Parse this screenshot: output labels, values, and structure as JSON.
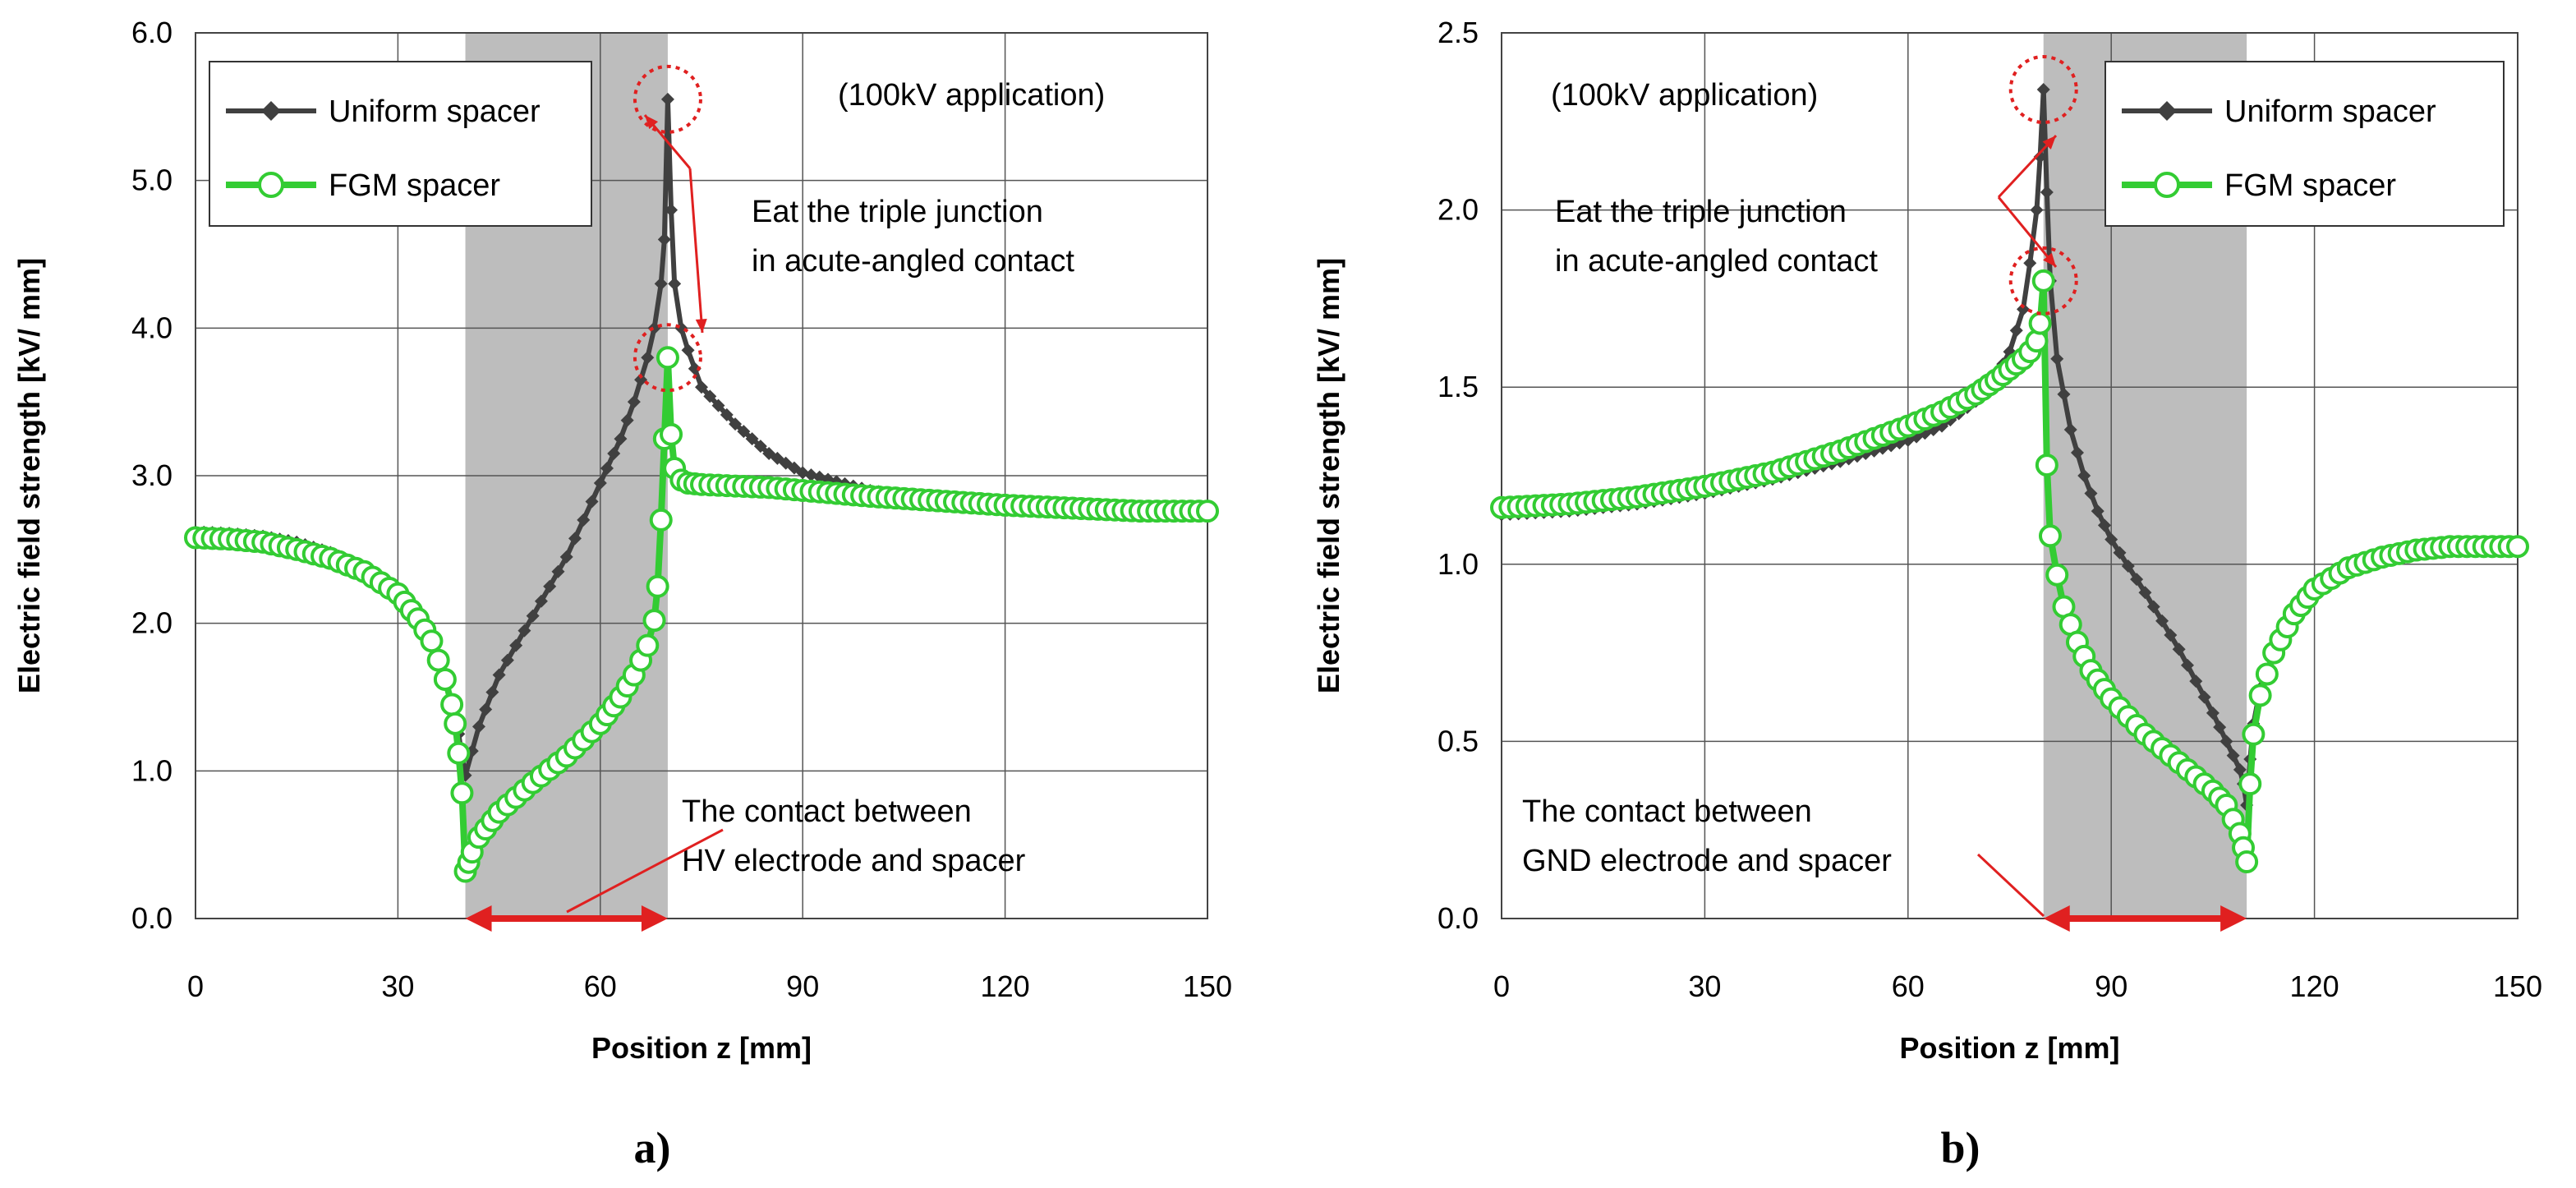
{
  "chart_data": [
    {
      "panel_label": "a)",
      "type": "line",
      "xlabel": "Position z [mm]",
      "ylabel": "Electric field strength [kV/ mm]",
      "xlim": [
        0,
        150
      ],
      "ylim": [
        0,
        6
      ],
      "xticks": [
        "0",
        "30",
        "60",
        "90",
        "120",
        "150"
      ],
      "yticks": [
        "0.0",
        "1.0",
        "2.0",
        "3.0",
        "4.0",
        "5.0",
        "6.0"
      ],
      "grid": true,
      "legend_position": "top-left",
      "shaded_region": [
        40,
        70
      ],
      "contact_arrow": [
        40,
        70
      ],
      "annotation_application": "(100kV application)",
      "annotation_eat_line1": "Eat the triple junction",
      "annotation_eat_line2": "in acute-angled contact",
      "annotation_contact_line1": "The contact between",
      "annotation_contact_line2": "HV electrode and spacer",
      "peak_circles": [
        [
          70,
          5.55
        ],
        [
          70,
          3.8
        ]
      ],
      "series": [
        {
          "name": "Uniform spacer",
          "color": "#404040",
          "marker": "diamond",
          "x": [
            0,
            5,
            10,
            15,
            20,
            25,
            30,
            33,
            35,
            37,
            38,
            39,
            39.5,
            40,
            42,
            45,
            50,
            55,
            60,
            63,
            65,
            67,
            68,
            69,
            69.5,
            70,
            70.5,
            71,
            72,
            73,
            75,
            80,
            85,
            90,
            100,
            110,
            120,
            130,
            140,
            150
          ],
          "y": [
            2.62,
            2.61,
            2.59,
            2.55,
            2.48,
            2.38,
            2.2,
            2.02,
            1.85,
            1.6,
            1.45,
            1.25,
            1.1,
            0.97,
            1.3,
            1.65,
            2.05,
            2.45,
            2.95,
            3.25,
            3.5,
            3.8,
            4.0,
            4.3,
            4.6,
            5.55,
            4.8,
            4.3,
            4.0,
            3.85,
            3.6,
            3.35,
            3.15,
            3.02,
            2.9,
            2.84,
            2.8,
            2.78,
            2.76,
            2.75
          ]
        },
        {
          "name": "FGM spacer",
          "color": "#33cc33",
          "marker": "circle",
          "x": [
            0,
            5,
            10,
            15,
            20,
            25,
            30,
            33,
            35,
            36,
            37,
            38,
            38.5,
            39,
            39.5,
            40,
            40.5,
            41,
            42,
            45,
            50,
            55,
            60,
            63,
            65,
            67,
            68,
            68.5,
            69,
            69.5,
            70,
            70.5,
            71,
            72,
            73,
            75,
            80,
            85,
            90,
            100,
            110,
            120,
            130,
            140,
            150
          ],
          "y": [
            2.58,
            2.57,
            2.55,
            2.5,
            2.44,
            2.35,
            2.2,
            2.03,
            1.88,
            1.75,
            1.62,
            1.45,
            1.32,
            1.12,
            0.85,
            0.32,
            0.38,
            0.45,
            0.55,
            0.72,
            0.92,
            1.1,
            1.32,
            1.5,
            1.65,
            1.85,
            2.02,
            2.25,
            2.7,
            3.25,
            3.8,
            3.28,
            3.05,
            2.97,
            2.95,
            2.94,
            2.93,
            2.92,
            2.9,
            2.86,
            2.83,
            2.8,
            2.78,
            2.76,
            2.76
          ]
        }
      ]
    },
    {
      "panel_label": "b)",
      "type": "line",
      "xlabel": "Position z [mm]",
      "ylabel": "Electric field strength [kV/ mm]",
      "xlim": [
        0,
        150
      ],
      "ylim": [
        0,
        2.5
      ],
      "xticks": [
        "0",
        "30",
        "60",
        "90",
        "120",
        "150"
      ],
      "yticks": [
        "0.0",
        "0.5",
        "1.0",
        "1.5",
        "2.0",
        "2.5"
      ],
      "grid": true,
      "legend_position": "top-right",
      "shaded_region": [
        80,
        110
      ],
      "contact_arrow": [
        80,
        110
      ],
      "annotation_application": "(100kV application)",
      "annotation_eat_line1": "Eat the triple junction",
      "annotation_eat_line2": "in acute-angled contact",
      "annotation_contact_line1": "The contact between",
      "annotation_contact_line2": "GND electrode and spacer",
      "peak_circles": [
        [
          80,
          2.34
        ],
        [
          80,
          1.8
        ]
      ],
      "series": [
        {
          "name": "Uniform spacer",
          "color": "#404040",
          "marker": "diamond",
          "x": [
            0,
            10,
            20,
            30,
            40,
            50,
            60,
            65,
            70,
            73,
            75,
            77,
            78,
            79,
            79.5,
            80,
            80.5,
            81,
            82,
            84,
            86,
            88,
            90,
            95,
            100,
            105,
            107,
            109,
            109.5,
            110,
            110.5,
            111,
            112,
            114,
            117,
            120,
            125,
            130,
            135,
            140,
            145,
            150
          ],
          "y": [
            1.14,
            1.15,
            1.17,
            1.2,
            1.24,
            1.29,
            1.35,
            1.39,
            1.46,
            1.53,
            1.6,
            1.72,
            1.85,
            2.0,
            2.15,
            2.34,
            2.05,
            1.8,
            1.58,
            1.38,
            1.25,
            1.15,
            1.07,
            0.92,
            0.76,
            0.58,
            0.5,
            0.42,
            0.38,
            0.32,
            0.45,
            0.55,
            0.65,
            0.75,
            0.86,
            0.93,
            0.99,
            1.02,
            1.04,
            1.05,
            1.05,
            1.05
          ]
        },
        {
          "name": "FGM spacer",
          "color": "#33cc33",
          "marker": "circle",
          "x": [
            0,
            10,
            20,
            30,
            40,
            50,
            60,
            65,
            70,
            73,
            75,
            77,
            78,
            79,
            79.5,
            80,
            80.5,
            81,
            82,
            83,
            85,
            87,
            90,
            95,
            100,
            105,
            107,
            108,
            109,
            109.5,
            110,
            110.5,
            111,
            112,
            114,
            117,
            120,
            125,
            130,
            135,
            140,
            145,
            150
          ],
          "y": [
            1.16,
            1.17,
            1.19,
            1.22,
            1.26,
            1.32,
            1.39,
            1.43,
            1.48,
            1.52,
            1.55,
            1.58,
            1.6,
            1.63,
            1.68,
            1.8,
            1.28,
            1.08,
            0.97,
            0.88,
            0.78,
            0.7,
            0.62,
            0.52,
            0.44,
            0.36,
            0.32,
            0.28,
            0.24,
            0.2,
            0.16,
            0.38,
            0.52,
            0.63,
            0.75,
            0.86,
            0.93,
            0.99,
            1.02,
            1.04,
            1.05,
            1.05,
            1.05
          ]
        }
      ]
    }
  ]
}
